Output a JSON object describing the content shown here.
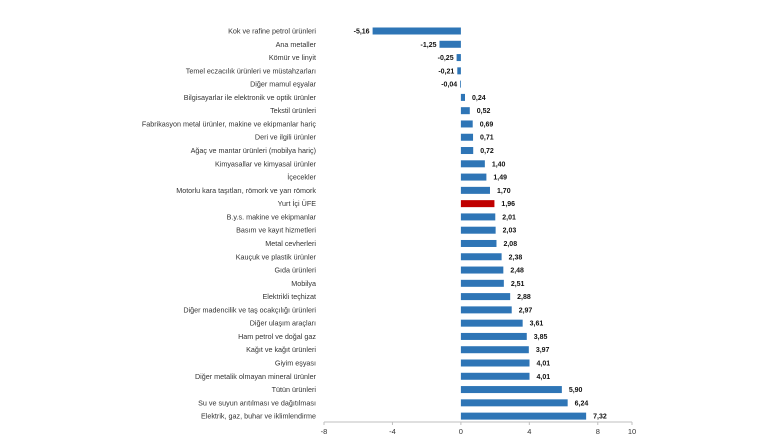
{
  "chart_data": {
    "type": "bar",
    "orientation": "horizontal",
    "categories": [
      "Kok ve rafine petrol ürünleri",
      "Ana metaller",
      "Kömür ve linyit",
      "Temel eczacılık ürünleri ve müstahzarları",
      "Diğer mamul eşyalar",
      "Bilgisayarlar ile elektronik ve optik ürünler",
      "Tekstil ürünleri",
      "Fabrikasyon metal ürünler, makine ve ekipmanlar hariç",
      "Deri ve ilgili ürünler",
      "Ağaç ve mantar ürünleri (mobilya hariç)",
      "Kimyasallar ve kimyasal ürünler",
      "İçecekler",
      "Motorlu kara taşıtları, römork ve yarı römork",
      "Yurt İçi ÜFE",
      "B.y.s. makine ve ekipmanlar",
      "Basım ve kayıt hizmetleri",
      "Metal cevherleri",
      "Kauçuk ve plastik ürünler",
      "Gıda ürünleri",
      "Mobilya",
      "Elektrikli teçhizat",
      "Diğer madencilik ve taş ocakçılığı ürünleri",
      "Diğer ulaşım araçları",
      "Ham petrol ve doğal gaz",
      "Kağıt ve kağıt ürünleri",
      "Giyim eşyası",
      "Diğer metalik olmayan mineral ürünler",
      "Tütün ürünleri",
      "Su ve suyun arıtılması ve dağıtılması",
      "Elektrik, gaz, buhar ve iklimlendirme"
    ],
    "values": [
      -5.16,
      -1.25,
      -0.25,
      -0.21,
      -0.04,
      0.24,
      0.52,
      0.69,
      0.71,
      0.72,
      1.4,
      1.49,
      1.7,
      1.96,
      2.01,
      2.03,
      2.08,
      2.38,
      2.48,
      2.51,
      2.88,
      2.97,
      3.61,
      3.85,
      3.97,
      4.01,
      4.01,
      5.9,
      6.24,
      7.32
    ],
    "value_labels": [
      "-5,16",
      "-1,25",
      "-0,25",
      "-0,21",
      "-0,04",
      "0,24",
      "0,52",
      "0,69",
      "0,71",
      "0,72",
      "1,40",
      "1,49",
      "1,70",
      "1,96",
      "2,01",
      "2,03",
      "2,08",
      "2,38",
      "2,48",
      "2,51",
      "2,88",
      "2,97",
      "3,61",
      "3,85",
      "3,97",
      "4,01",
      "4,01",
      "5,90",
      "6,24",
      "7,32"
    ],
    "highlight_index": 13,
    "xlim": [
      -8,
      10
    ],
    "x_ticks": [
      -8,
      -4,
      0,
      4,
      8,
      10
    ],
    "x_tick_labels": [
      "-8",
      "-4",
      "0",
      "4",
      "8",
      "10"
    ],
    "grid": false,
    "legend": "none",
    "title": "",
    "xlabel": "",
    "ylabel": "",
    "colors": {
      "bar": "#2e75b6",
      "highlight": "#c00000",
      "axis": "#bfbfbf"
    }
  }
}
